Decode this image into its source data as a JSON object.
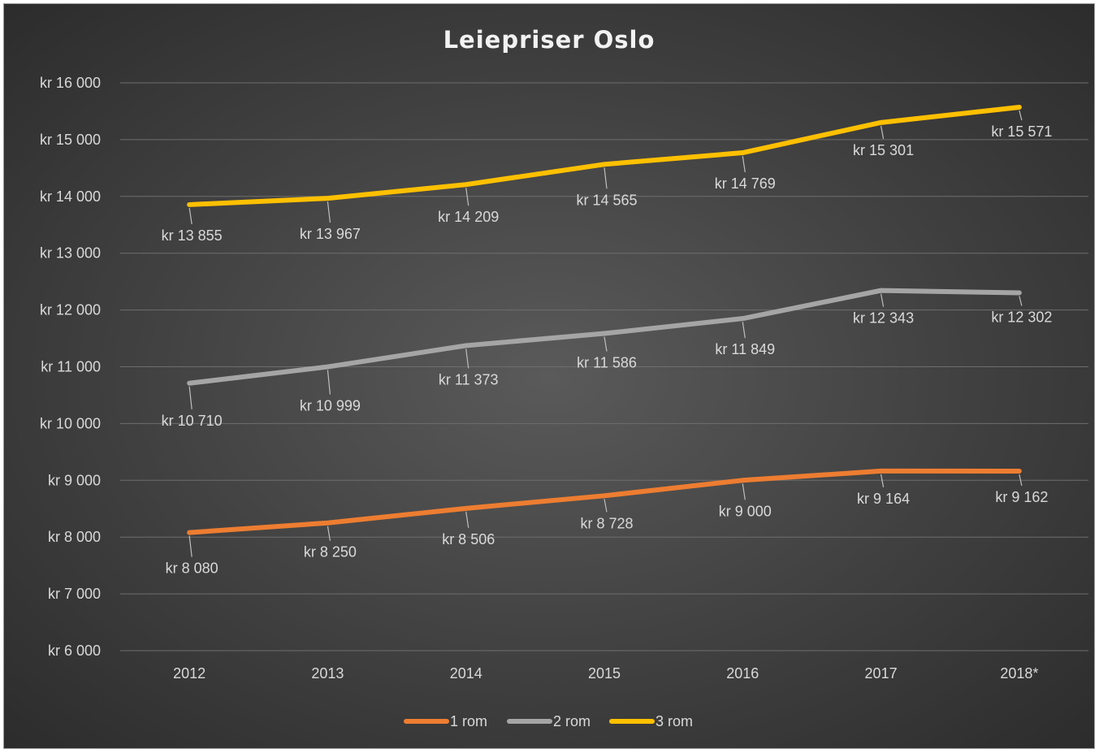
{
  "chart_data": {
    "type": "line",
    "title": "Leiepriser Oslo",
    "xlabel": "",
    "ylabel": "",
    "categories": [
      "2012",
      "2013",
      "2014",
      "2015",
      "2016",
      "2017",
      "2018*"
    ],
    "ylim": [
      6000,
      16000
    ],
    "y_ticks": [
      {
        "value": 16000,
        "label": "kr 16 000"
      },
      {
        "value": 15000,
        "label": "kr 15 000"
      },
      {
        "value": 14000,
        "label": "kr 14 000"
      },
      {
        "value": 13000,
        "label": "kr 13 000"
      },
      {
        "value": 12000,
        "label": "kr 12 000"
      },
      {
        "value": 11000,
        "label": "kr 11 000"
      },
      {
        "value": 10000,
        "label": "kr 10 000"
      },
      {
        "value": 9000,
        "label": "kr 9 000"
      },
      {
        "value": 8000,
        "label": "kr 8 000"
      },
      {
        "value": 7000,
        "label": "kr 7 000"
      },
      {
        "value": 6000,
        "label": "kr 6 000"
      }
    ],
    "grid": true,
    "legend": "bottom",
    "series": [
      {
        "name": "1 rom",
        "color": "#ED7D31",
        "values": [
          8080,
          8250,
          8506,
          8728,
          9000,
          9164,
          9162
        ],
        "labels": [
          "kr 8 080",
          "kr 8 250",
          "kr 8 506",
          "kr 8 728",
          "kr 9 000",
          "kr 9 164",
          "kr 9 162"
        ]
      },
      {
        "name": "2 rom",
        "color": "#A5A5A5",
        "values": [
          10710,
          10999,
          11373,
          11586,
          11849,
          12343,
          12302
        ],
        "labels": [
          "kr 10 710",
          "kr 10 999",
          "kr 11 373",
          "kr 11 586",
          "kr 11 849",
          "kr 12 343",
          "kr 12 302"
        ]
      },
      {
        "name": "3 rom",
        "color": "#FFC000",
        "values": [
          13855,
          13967,
          14209,
          14565,
          14769,
          15301,
          15571
        ],
        "labels": [
          "kr 13 855",
          "kr 13 967",
          "kr 14 209",
          "kr 14 565",
          "kr 14 769",
          "kr 15 301",
          "kr 15 571"
        ]
      }
    ]
  }
}
